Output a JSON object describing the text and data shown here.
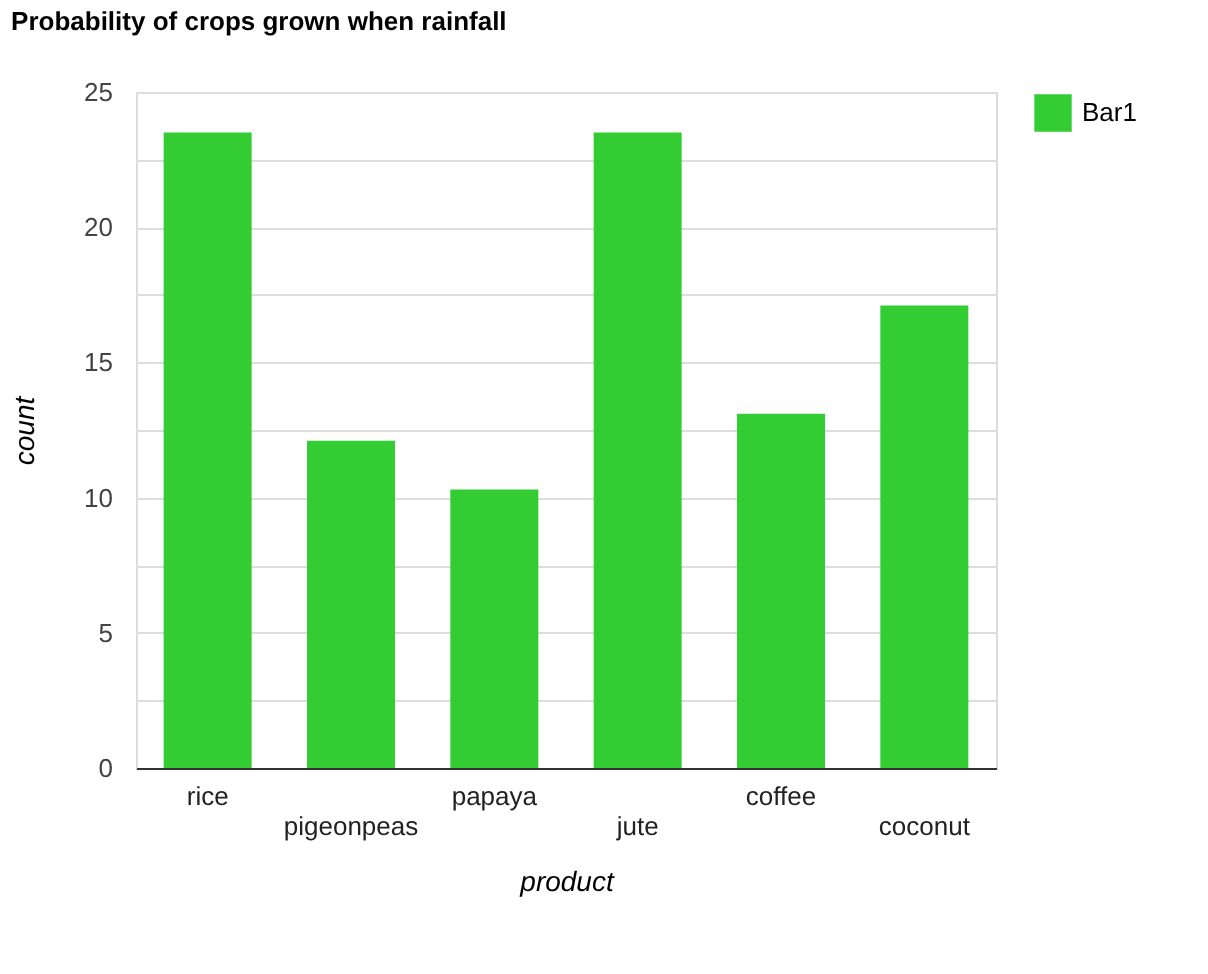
{
  "chart_data": {
    "type": "bar",
    "title": "Probability of crops grown when rainfall",
    "xlabel": "product",
    "ylabel": "count",
    "categories": [
      "rice",
      "pigeonpeas",
      "papaya",
      "jute",
      "coffee",
      "coconut"
    ],
    "series": [
      {
        "name": "Bar1",
        "color": "#33cc33",
        "values": [
          23.5,
          12.1,
          10.3,
          23.5,
          13.1,
          17.1
        ]
      }
    ],
    "ylim": [
      0,
      25
    ],
    "yticks": [
      0,
      {
        "value": 2.5,
        "label": null
      },
      5,
      {
        "value": 7.5,
        "label": null
      },
      10,
      {
        "value": 12.5,
        "label": null
      },
      15,
      {
        "value": 17.5,
        "label": null
      },
      20,
      {
        "value": 22.5,
        "label": null
      },
      25
    ],
    "grid": "y",
    "legend": "top right"
  }
}
